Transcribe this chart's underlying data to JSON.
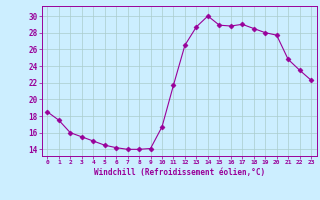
{
  "x": [
    0,
    1,
    2,
    3,
    4,
    5,
    6,
    7,
    8,
    9,
    10,
    11,
    12,
    13,
    14,
    15,
    16,
    17,
    18,
    19,
    20,
    21,
    22,
    23
  ],
  "y": [
    18.5,
    17.5,
    16.0,
    15.5,
    15.0,
    14.5,
    14.2,
    14.0,
    14.0,
    14.1,
    16.7,
    21.7,
    26.5,
    28.7,
    30.0,
    28.9,
    28.8,
    29.0,
    28.5,
    28.0,
    27.7,
    24.8,
    23.5,
    22.3
  ],
  "line_color": "#990099",
  "marker": "D",
  "marker_size": 2.5,
  "bg_color": "#cceeff",
  "grid_color": "#aacccc",
  "xlabel": "Windchill (Refroidissement éolien,°C)",
  "xlabel_color": "#990099",
  "tick_color": "#990099",
  "ytick_values": [
    14,
    16,
    18,
    20,
    22,
    24,
    26,
    28,
    30
  ],
  "ylim": [
    13.2,
    31.2
  ],
  "xlim": [
    -0.5,
    23.5
  ]
}
